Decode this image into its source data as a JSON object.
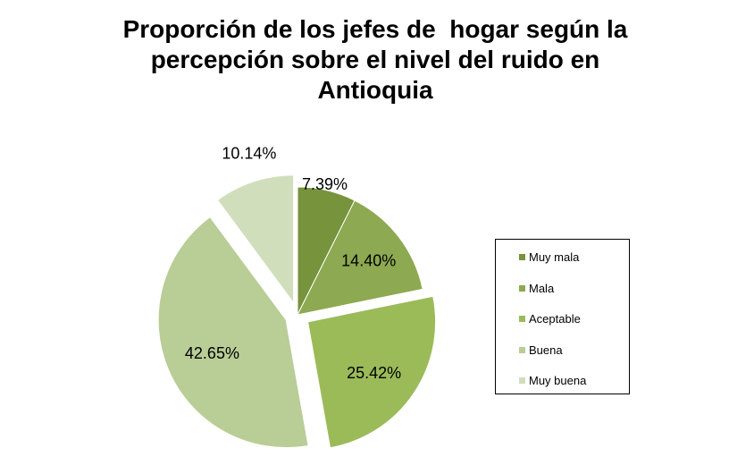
{
  "chart_data": {
    "type": "pie",
    "title_lines": [
      "Proporción de los jefes de  hogar según la",
      "percepción sobre el nivel del ruido en",
      "Antioquia"
    ],
    "categories": [
      "Muy mala",
      "Mala",
      "Aceptable",
      "Buena",
      "Muy buena"
    ],
    "values": [
      7.39,
      14.4,
      25.42,
      42.65,
      10.14
    ],
    "data_labels": [
      "7.39%",
      "14.40%",
      "25.42%",
      "42.65%",
      "10.14%"
    ],
    "colors": [
      "#77933C",
      "#8DA951",
      "#9BBB59",
      "#B9CD96",
      "#D1DEBB"
    ],
    "exploded": [
      false,
      false,
      true,
      true,
      true
    ],
    "legend_position": "right"
  }
}
